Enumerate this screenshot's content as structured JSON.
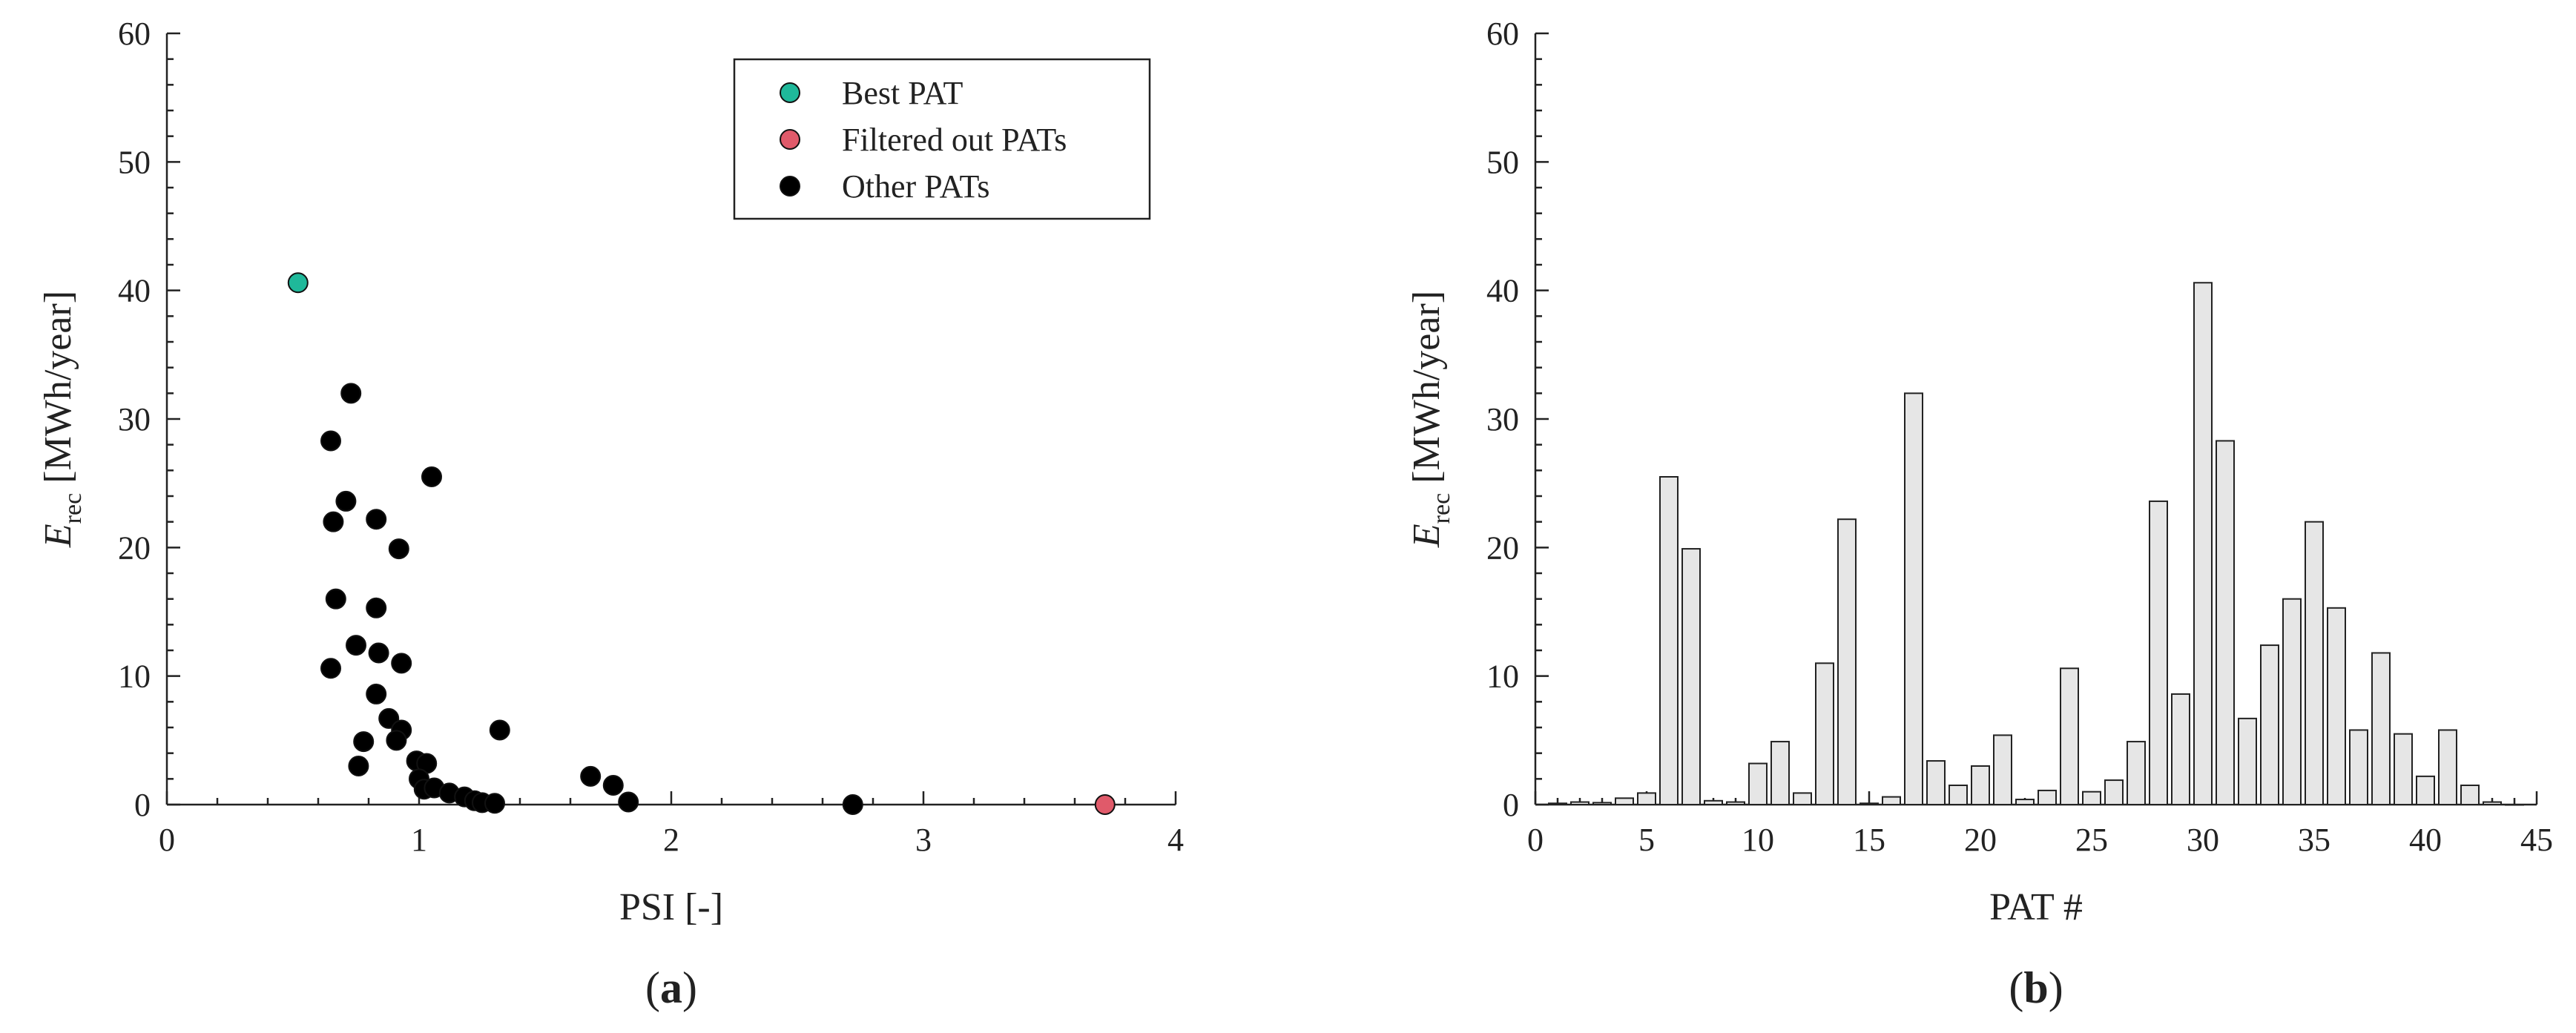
{
  "chart_data": [
    {
      "type": "scatter",
      "panel_label": {
        "open": "(",
        "letter": "a",
        "close": ")"
      },
      "xlabel": "PSI [-]",
      "ylabel": {
        "main": "E",
        "sub": "rec",
        "rest": " [MWh/year]"
      },
      "xlim": [
        0,
        4
      ],
      "ylim": [
        0,
        60
      ],
      "xticks": [
        0,
        1,
        2,
        3,
        4
      ],
      "yticks": [
        0,
        10,
        20,
        30,
        40,
        50,
        60
      ],
      "grid": false,
      "legend_position": "top-right",
      "series": [
        {
          "name": "Best PAT",
          "color": "#1fb89a",
          "points": [
            [
              0.52,
              40.6
            ]
          ]
        },
        {
          "name": "Filtered out PATs",
          "color": "#e05a6a",
          "points": [
            [
              3.72,
              0.0
            ]
          ]
        },
        {
          "name": "Other PATs",
          "color": "#000000",
          "points": [
            [
              0.73,
              32.0
            ],
            [
              0.65,
              28.3
            ],
            [
              1.05,
              25.5
            ],
            [
              0.71,
              23.6
            ],
            [
              0.83,
              22.2
            ],
            [
              0.66,
              22.0
            ],
            [
              0.92,
              19.9
            ],
            [
              0.67,
              16.0
            ],
            [
              0.83,
              15.3
            ],
            [
              0.75,
              12.4
            ],
            [
              0.84,
              11.8
            ],
            [
              0.93,
              11.0
            ],
            [
              0.65,
              10.6
            ],
            [
              0.83,
              8.6
            ],
            [
              0.88,
              6.7
            ],
            [
              0.93,
              5.8
            ],
            [
              1.32,
              5.8
            ],
            [
              0.91,
              5.0
            ],
            [
              0.78,
              4.9
            ],
            [
              0.99,
              3.4
            ],
            [
              1.03,
              3.2
            ],
            [
              0.76,
              3.0
            ],
            [
              1.68,
              2.2
            ],
            [
              1.0,
              2.0
            ],
            [
              1.77,
              1.5
            ],
            [
              1.02,
              1.2
            ],
            [
              1.06,
              1.3
            ],
            [
              1.12,
              0.9
            ],
            [
              1.18,
              0.6
            ],
            [
              1.22,
              0.3
            ],
            [
              1.25,
              0.15
            ],
            [
              1.3,
              0.1
            ],
            [
              1.83,
              0.2
            ],
            [
              2.72,
              0.0
            ]
          ]
        }
      ]
    },
    {
      "type": "bar",
      "panel_label": {
        "open": "(",
        "letter": "b",
        "close": ")"
      },
      "xlabel": "PAT #",
      "ylabel": {
        "main": "E",
        "sub": "rec",
        "rest": " [MWh/year]"
      },
      "xlim": [
        0,
        45
      ],
      "ylim": [
        0,
        60
      ],
      "xticks": [
        0,
        5,
        10,
        15,
        20,
        25,
        30,
        35,
        40,
        45
      ],
      "yticks": [
        0,
        10,
        20,
        30,
        40,
        50,
        60
      ],
      "grid": false,
      "bar_color": "#e6e6e6",
      "categories": [
        1,
        2,
        3,
        4,
        5,
        6,
        7,
        8,
        9,
        10,
        11,
        12,
        13,
        14,
        15,
        16,
        17,
        18,
        19,
        20,
        21,
        22,
        23,
        24,
        25,
        26,
        27,
        28,
        29,
        30,
        31,
        32,
        33,
        34,
        35,
        36,
        37,
        38,
        39,
        40,
        41,
        42,
        43,
        44
      ],
      "values": [
        0.1,
        0.2,
        0.15,
        0.5,
        0.9,
        25.5,
        19.9,
        0.3,
        0.2,
        3.2,
        4.9,
        0.9,
        11.0,
        22.2,
        0.1,
        0.6,
        32.0,
        3.4,
        1.5,
        3.0,
        5.4,
        0.4,
        1.1,
        10.6,
        1.0,
        1.9,
        4.9,
        23.6,
        8.6,
        40.6,
        28.3,
        6.7,
        12.4,
        16.0,
        22.0,
        15.3,
        5.8,
        11.8,
        5.5,
        2.2,
        5.8,
        1.5,
        0.2,
        0.0
      ]
    }
  ]
}
